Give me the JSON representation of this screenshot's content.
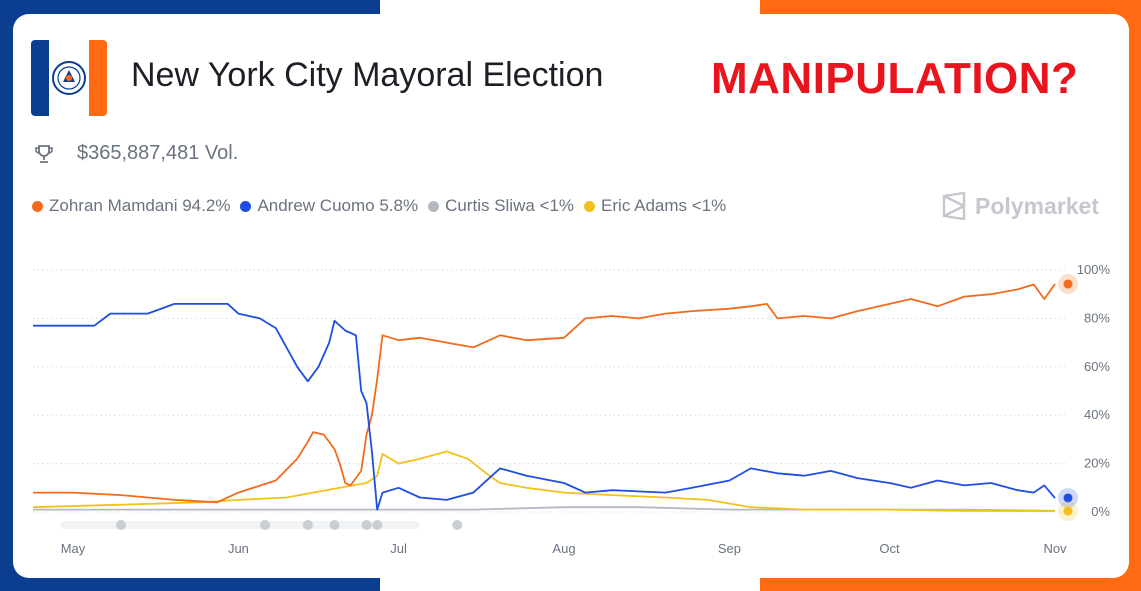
{
  "page": {
    "title": "New York City Mayoral Election",
    "headline": "MANIPULATION?",
    "volume": "$365,887,481 Vol.",
    "brand": "Polymarket"
  },
  "icons": {
    "logo": "nyc-flag-seal",
    "volume": "trophy-icon",
    "brand": "polymarket-logo-icon"
  },
  "colors": {
    "mamdani": "#f26b1d",
    "cuomo": "#1f4fe0",
    "sliwa": "#b3b9c3",
    "adams": "#f2c21a",
    "headline": "#e8141e"
  },
  "legend": [
    {
      "text": "Zohran Mamdani 94.2%",
      "color": "#f26b1d"
    },
    {
      "text": "Andrew Cuomo 5.8%",
      "color": "#1f4fe0"
    },
    {
      "text": "Curtis Sliwa <1%",
      "color": "#b3b9c3"
    },
    {
      "text": "Eric Adams <1%",
      "color": "#f2c21a"
    }
  ],
  "chart_data": {
    "type": "line",
    "x_ticks": [
      "May",
      "Jun",
      "Jul",
      "Aug",
      "Sep",
      "Oct",
      "Nov"
    ],
    "y_ticks": [
      "100%",
      "80%",
      "60%",
      "40%",
      "20%",
      "0%"
    ],
    "ylim": [
      0,
      100
    ],
    "grid": true,
    "series": [
      {
        "name": "Zohran Mamdani",
        "color": "#f26b1d",
        "points": [
          [
            "Apr 23",
            8
          ],
          [
            "May 1",
            8
          ],
          [
            "May 10",
            7
          ],
          [
            "May 20",
            5
          ],
          [
            "May 28",
            4
          ],
          [
            "Jun 1",
            8
          ],
          [
            "Jun 8",
            13
          ],
          [
            "Jun 12",
            22
          ],
          [
            "Jun 14",
            29
          ],
          [
            "Jun 15",
            33
          ],
          [
            "Jun 17",
            32
          ],
          [
            "Jun 19",
            26
          ],
          [
            "Jun 20",
            20
          ],
          [
            "Jun 21",
            12
          ],
          [
            "Jun 22",
            11
          ],
          [
            "Jun 24",
            17
          ],
          [
            "Jun 25",
            32
          ],
          [
            "Jun 26",
            40
          ],
          [
            "Jun 27",
            55
          ],
          [
            "Jun 28",
            73
          ],
          [
            "Jul 1",
            71
          ],
          [
            "Jul 5",
            72
          ],
          [
            "Jul 10",
            70
          ],
          [
            "Jul 15",
            68
          ],
          [
            "Jul 20",
            73
          ],
          [
            "Jul 25",
            71
          ],
          [
            "Aug 1",
            72
          ],
          [
            "Aug 3",
            76
          ],
          [
            "Aug 5",
            80
          ],
          [
            "Aug 10",
            81
          ],
          [
            "Aug 15",
            80
          ],
          [
            "Aug 20",
            82
          ],
          [
            "Aug 25",
            83
          ],
          [
            "Sep 1",
            84
          ],
          [
            "Sep 5",
            85
          ],
          [
            "Sep 8",
            86
          ],
          [
            "Sep 10",
            80
          ],
          [
            "Sep 15",
            81
          ],
          [
            "Sep 20",
            80
          ],
          [
            "Sep 25",
            83
          ],
          [
            "Oct 1",
            86
          ],
          [
            "Oct 5",
            88
          ],
          [
            "Oct 10",
            85
          ],
          [
            "Oct 15",
            89
          ],
          [
            "Oct 20",
            90
          ],
          [
            "Oct 25",
            92
          ],
          [
            "Oct 28",
            94
          ],
          [
            "Oct 30",
            88
          ],
          [
            "Nov 1",
            94.2
          ]
        ]
      },
      {
        "name": "Andrew Cuomo",
        "color": "#1f4fe0",
        "points": [
          [
            "Apr 23",
            77
          ],
          [
            "May 5",
            77
          ],
          [
            "May 8",
            82
          ],
          [
            "May 15",
            82
          ],
          [
            "May 20",
            86
          ],
          [
            "May 30",
            86
          ],
          [
            "Jun 1",
            82
          ],
          [
            "Jun 5",
            80
          ],
          [
            "Jun 8",
            76
          ],
          [
            "Jun 10",
            68
          ],
          [
            "Jun 12",
            60
          ],
          [
            "Jun 14",
            54
          ],
          [
            "Jun 16",
            60
          ],
          [
            "Jun 18",
            70
          ],
          [
            "Jun 19",
            79
          ],
          [
            "Jun 21",
            75
          ],
          [
            "Jun 23",
            73
          ],
          [
            "Jun 24",
            50
          ],
          [
            "Jun 25",
            45
          ],
          [
            "Jun 26",
            25
          ],
          [
            "Jun 27",
            1
          ],
          [
            "Jun 28",
            8
          ],
          [
            "Jul 1",
            10
          ],
          [
            "Jul 5",
            6
          ],
          [
            "Jul 10",
            5
          ],
          [
            "Jul 15",
            8
          ],
          [
            "Jul 18",
            14
          ],
          [
            "Jul 20",
            18
          ],
          [
            "Jul 25",
            15
          ],
          [
            "Aug 1",
            12
          ],
          [
            "Aug 5",
            8
          ],
          [
            "Aug 10",
            9
          ],
          [
            "Aug 20",
            8
          ],
          [
            "Aug 25",
            10
          ],
          [
            "Sep 1",
            13
          ],
          [
            "Sep 5",
            18
          ],
          [
            "Sep 10",
            16
          ],
          [
            "Sep 15",
            15
          ],
          [
            "Sep 20",
            17
          ],
          [
            "Sep 25",
            14
          ],
          [
            "Oct 1",
            12
          ],
          [
            "Oct 5",
            10
          ],
          [
            "Oct 10",
            13
          ],
          [
            "Oct 15",
            11
          ],
          [
            "Oct 20",
            12
          ],
          [
            "Oct 25",
            9
          ],
          [
            "Oct 28",
            8
          ],
          [
            "Oct 30",
            11
          ],
          [
            "Nov 1",
            5.8
          ]
        ]
      },
      {
        "name": "Curtis Sliwa",
        "color": "#b3b9c3",
        "points": [
          [
            "Apr 23",
            1
          ],
          [
            "May 15",
            1
          ],
          [
            "Jun 1",
            1
          ],
          [
            "Jun 10",
            1
          ],
          [
            "Jun 20",
            1
          ],
          [
            "Jul 1",
            1
          ],
          [
            "Jul 15",
            1
          ],
          [
            "Aug 1",
            2
          ],
          [
            "Aug 15",
            2
          ],
          [
            "Sep 1",
            1
          ],
          [
            "Sep 15",
            1
          ],
          [
            "Oct 1",
            1
          ],
          [
            "Oct 15",
            1
          ],
          [
            "Nov 1",
            0.5
          ]
        ]
      },
      {
        "name": "Eric Adams",
        "color": "#f2c21a",
        "points": [
          [
            "Apr 23",
            2
          ],
          [
            "May 10",
            3
          ],
          [
            "May 25",
            4
          ],
          [
            "Jun 1",
            5
          ],
          [
            "Jun 10",
            6
          ],
          [
            "Jun 20",
            10
          ],
          [
            "Jun 25",
            12
          ],
          [
            "Jun 27",
            15
          ],
          [
            "Jun 28",
            24
          ],
          [
            "Jul 1",
            20
          ],
          [
            "Jul 5",
            22
          ],
          [
            "Jul 10",
            25
          ],
          [
            "Jul 14",
            22
          ],
          [
            "Jul 18",
            15
          ],
          [
            "Jul 20",
            12
          ],
          [
            "Jul 25",
            10
          ],
          [
            "Aug 1",
            8
          ],
          [
            "Aug 10",
            7
          ],
          [
            "Aug 20",
            6
          ],
          [
            "Aug 28",
            5
          ],
          [
            "Sep 5",
            2
          ],
          [
            "Sep 15",
            1
          ],
          [
            "Oct 1",
            1
          ],
          [
            "Oct 15",
            0.5
          ],
          [
            "Nov 1",
            0.4
          ]
        ]
      }
    ]
  }
}
